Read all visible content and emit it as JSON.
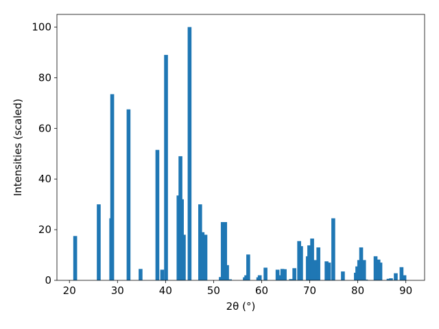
{
  "chart_data": {
    "type": "bar",
    "xlabel": "2θ (°)",
    "ylabel": "Intensities (scaled)",
    "color": "#1f77b4",
    "x": [
      21.2,
      26.1,
      28.7,
      28.9,
      32.3,
      34.8,
      38.3,
      39.3,
      40.1,
      42.7,
      43.1,
      43.4,
      43.8,
      45.0,
      47.2,
      47.7,
      48.3,
      51.5,
      51.9,
      52.4,
      52.8,
      53.4,
      56.5,
      56.8,
      57.2,
      59.3,
      59.6,
      60.8,
      63.3,
      63.7,
      64.3,
      64.8,
      66.1,
      66.8,
      67.8,
      68.2,
      69.6,
      69.9,
      70.5,
      71.1,
      71.8,
      73.5,
      74.0,
      74.9,
      76.9,
      79.6,
      79.9,
      80.3,
      80.7,
      81.3,
      81.7,
      83.7,
      84.3,
      84.7,
      86.4,
      86.9,
      87.9,
      89.1,
      89.7
    ],
    "values": [
      17.5,
      30,
      24.5,
      73.5,
      67.5,
      4.5,
      51.5,
      4.2,
      89,
      33.5,
      49,
      32,
      18,
      100,
      30,
      19,
      18,
      1.3,
      23,
      23,
      6,
      0.4,
      1.2,
      2,
      10.2,
      1.2,
      2,
      5,
      4.2,
      2,
      4.5,
      4.4,
      0.5,
      4.8,
      15.5,
      13.5,
      9.5,
      13.8,
      16.5,
      8,
      13,
      7.5,
      7,
      24.5,
      3.5,
      3,
      5.5,
      8,
      13,
      8,
      0.3,
      9.5,
      8.2,
      7,
      0.6,
      0.8,
      2.8,
      5.2,
      2
    ],
    "xlim": [
      17.4,
      93.9
    ],
    "ylim": [
      0,
      105
    ],
    "xticks": [
      20,
      30,
      40,
      50,
      60,
      70,
      80,
      90
    ],
    "yticks": [
      0,
      20,
      40,
      60,
      80,
      100
    ]
  }
}
